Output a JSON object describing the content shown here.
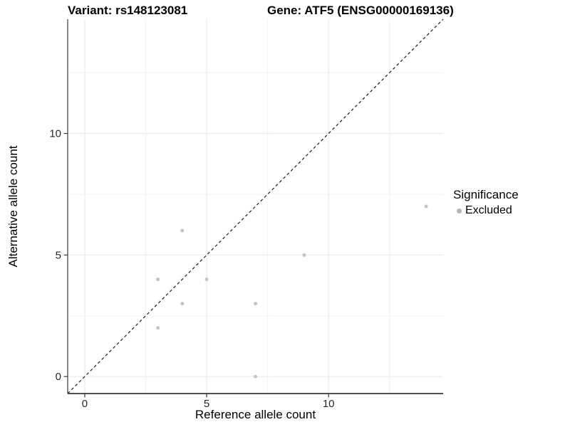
{
  "header": {
    "variant_title": "Variant: rs148123081",
    "gene_title": "Gene: ATF5 (ENSG00000169136)"
  },
  "chart_data": {
    "type": "scatter",
    "xlabel": "Reference allele count",
    "ylabel": "Alternative allele count",
    "xlim": [
      -0.7,
      14.7
    ],
    "ylim": [
      -0.7,
      14.7
    ],
    "x_major_ticks": [
      0,
      5,
      10
    ],
    "y_major_ticks": [
      0,
      5,
      10
    ],
    "x_minor_gridlines": [
      2.5,
      7.5,
      12.5
    ],
    "y_minor_gridlines": [
      2.5,
      7.5,
      12.5
    ],
    "grid": true,
    "legend_position": "right",
    "series": [
      {
        "name": "Excluded",
        "marker": "circle",
        "color": "#c4c4c4",
        "points": [
          {
            "x": 3,
            "y": 2
          },
          {
            "x": 3,
            "y": 4
          },
          {
            "x": 4,
            "y": 3
          },
          {
            "x": 4,
            "y": 6
          },
          {
            "x": 5,
            "y": 4
          },
          {
            "x": 7,
            "y": 0
          },
          {
            "x": 7,
            "y": 3
          },
          {
            "x": 9,
            "y": 5
          },
          {
            "x": 14,
            "y": 7
          }
        ]
      }
    ],
    "reference_line": {
      "type": "identity",
      "slope": 1,
      "intercept": 0,
      "style": "dashed",
      "color": "#1a1a1a"
    }
  },
  "legend": {
    "title": "Significance",
    "items": [
      {
        "label": "Excluded",
        "marker": "circle",
        "color": "#b4b4b4"
      }
    ]
  },
  "colors": {
    "background": "#ffffff",
    "grid_major": "#e8e8e8",
    "grid_minor": "#f2f2f2",
    "axis_line": "#3a3a3a",
    "tick_mark": "#3a3a3a",
    "tick_label": "#262626",
    "point_fill": "#c4c4c4"
  }
}
